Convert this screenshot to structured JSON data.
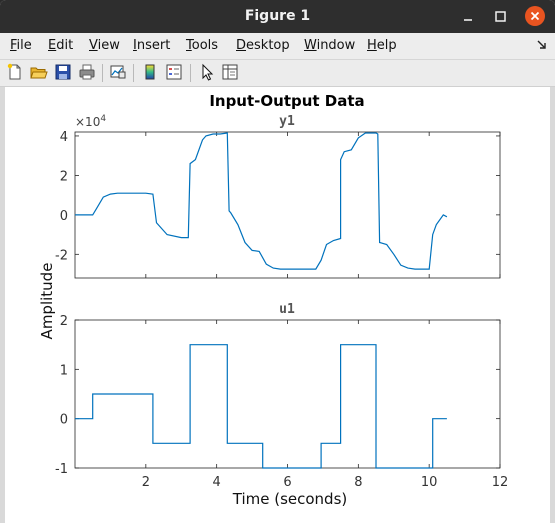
{
  "window": {
    "title": "Figure 1"
  },
  "menu": [
    "File",
    "Edit",
    "View",
    "Insert",
    "Tools",
    "Desktop",
    "Window",
    "Help"
  ],
  "menu_mnemonics": [
    "F",
    "E",
    "V",
    "I",
    "T",
    "D",
    "W",
    "H"
  ],
  "toolbar": [
    "new-figure",
    "open-file",
    "save",
    "print",
    "link-plot",
    "insert-colorbar",
    "insert-legend",
    "edit-plot-pointer",
    "property-inspector"
  ],
  "colors": {
    "trace": "#0072bd",
    "titlebar": "#2e2e2e",
    "close": "#e95420"
  },
  "figure": {
    "title": "Input-Output Data",
    "ylabel": "Amplitude",
    "xlabel": "Time (seconds)"
  },
  "chart_data": [
    {
      "type": "line",
      "title": "y1",
      "exponent_label": "×10",
      "exponent_power": "4",
      "xlim": [
        0,
        12
      ],
      "ylim": [
        -3.2,
        4.2
      ],
      "yticks": [
        "4",
        "2",
        "0",
        "-2"
      ],
      "ytick_values": [
        4,
        2,
        0,
        -2
      ],
      "series": [
        {
          "x": [
            0,
            0.5,
            0.6,
            0.8,
            1.0,
            1.2,
            1.5,
            2.0,
            2.2,
            2.3,
            2.6,
            3.0,
            3.2,
            3.25,
            3.4,
            3.6,
            3.7,
            3.9,
            4.1,
            4.3,
            4.35,
            4.4,
            4.6,
            4.8,
            5.0,
            5.2,
            5.4,
            5.6,
            5.8,
            6.0,
            6.2,
            6.5,
            6.8,
            6.95,
            7.1,
            7.3,
            7.5,
            7.5,
            7.6,
            7.8,
            8.0,
            8.2,
            8.5,
            8.55,
            8.6,
            8.8,
            9.0,
            9.2,
            9.4,
            9.6,
            9.8,
            10.0,
            10.1,
            10.2,
            10.4,
            10.5
          ],
          "y": [
            0,
            0,
            0.3,
            0.9,
            1.05,
            1.1,
            1.1,
            1.1,
            1.05,
            -0.4,
            -1.0,
            -1.15,
            -1.15,
            2.6,
            2.8,
            3.8,
            4.0,
            4.1,
            4.1,
            4.15,
            0.2,
            0.1,
            -0.5,
            -1.4,
            -1.8,
            -1.85,
            -2.5,
            -2.7,
            -2.75,
            -2.75,
            -2.75,
            -2.75,
            -2.75,
            -2.3,
            -1.5,
            -1.3,
            -1.2,
            2.8,
            3.2,
            3.3,
            3.9,
            4.15,
            4.15,
            4.1,
            -1.4,
            -1.5,
            -2.0,
            -2.55,
            -2.7,
            -2.75,
            -2.75,
            -2.75,
            -1.0,
            -0.5,
            0.0,
            -0.1
          ]
        }
      ]
    },
    {
      "type": "line",
      "title": "u1",
      "xlim": [
        0,
        12
      ],
      "ylim": [
        -1,
        2
      ],
      "yticks": [
        "2",
        "1",
        "0",
        "-1"
      ],
      "ytick_values": [
        2,
        1,
        0,
        -1
      ],
      "xticks": [
        "2",
        "4",
        "6",
        "8",
        "10",
        "12"
      ],
      "xtick_values": [
        2,
        4,
        6,
        8,
        10,
        12
      ],
      "series": [
        {
          "x": [
            0,
            0.5,
            0.5,
            2.2,
            2.2,
            3.25,
            3.25,
            4.3,
            4.3,
            5.3,
            5.3,
            6.95,
            6.95,
            7.5,
            7.5,
            8.5,
            8.5,
            10.1,
            10.1,
            10.5
          ],
          "y": [
            0,
            0,
            0.5,
            0.5,
            -0.5,
            -0.5,
            1.5,
            1.5,
            -0.5,
            -0.5,
            -1.0,
            -1.0,
            -0.5,
            -0.5,
            1.5,
            1.5,
            -1.0,
            -1.0,
            0.0,
            0.0
          ]
        }
      ]
    }
  ]
}
